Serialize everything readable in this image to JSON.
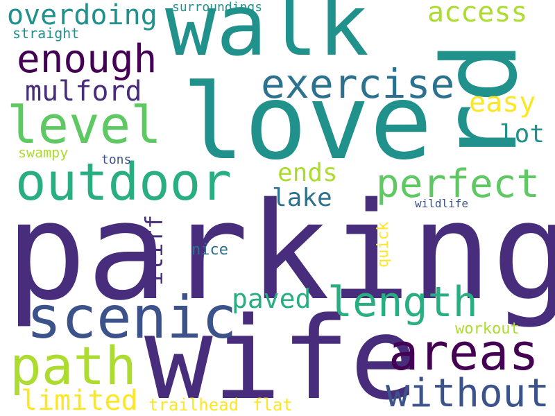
{
  "words": {
    "parking": "parking",
    "wife": "wife",
    "love": "love",
    "walk": "walk",
    "rd": "rd",
    "scenic": "scenic",
    "outdoor": "outdoor",
    "path": "path",
    "areas": "areas",
    "level": "level",
    "length": "length",
    "exercise": "exercise",
    "without": "without",
    "perfect": "perfect",
    "enough": "enough",
    "overdoing": "overdoing",
    "access": "access",
    "mulford": "mulford",
    "limited": "limited",
    "paved": "paved",
    "easy": "easy",
    "ends": "ends",
    "lake": "lake",
    "lot": "lot",
    "iliff": "iliff",
    "trailhead": "trailhead",
    "flat": "flat",
    "quick": "quick",
    "nice": "nice",
    "workout": "workout",
    "straight": "straight",
    "surroundings": "surroundings",
    "swampy": "swampy",
    "tons": "tons",
    "wildlife": "wildlife"
  }
}
